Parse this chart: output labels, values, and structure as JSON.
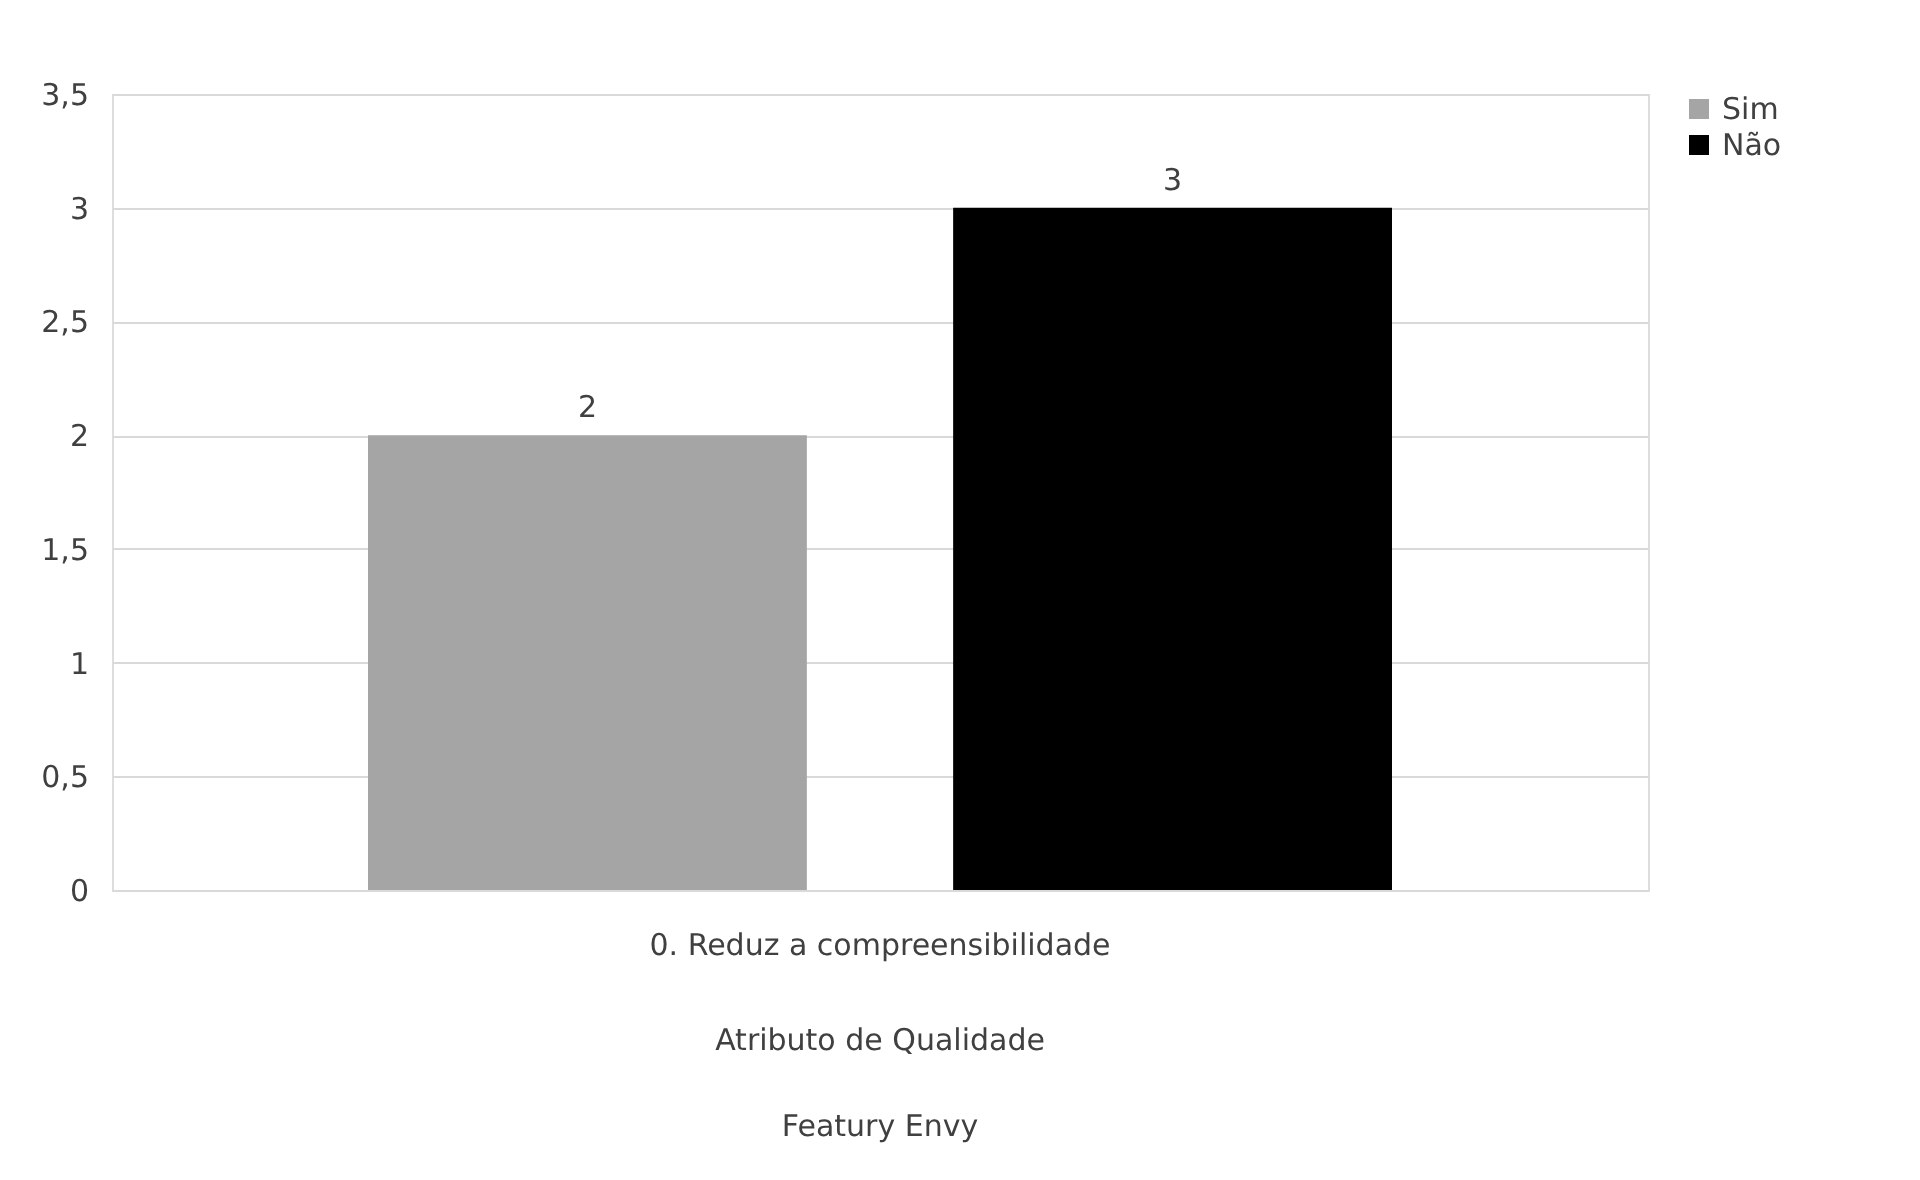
{
  "chart_data": {
    "type": "bar",
    "categories": [
      "0. Reduz a compreensibilidade"
    ],
    "series": [
      {
        "name": "Sim",
        "color": "#a5a5a5",
        "values": [
          2
        ]
      },
      {
        "name": "Não",
        "color": "#000000",
        "values": [
          3
        ]
      }
    ],
    "ylim": [
      0,
      3.5
    ],
    "yticks": [
      0,
      {
        "value": 0.5,
        "label": "0,5"
      },
      1,
      {
        "value": 1.5,
        "label": "1,5"
      },
      2,
      {
        "value": 2.5,
        "label": "2,5"
      },
      3,
      {
        "value": 3.5,
        "label": "3,5"
      }
    ],
    "grid": "y",
    "legend": "right",
    "data_labels": true,
    "annotations": [
      "Atributo de Qualidade",
      "Featury Envy"
    ]
  }
}
